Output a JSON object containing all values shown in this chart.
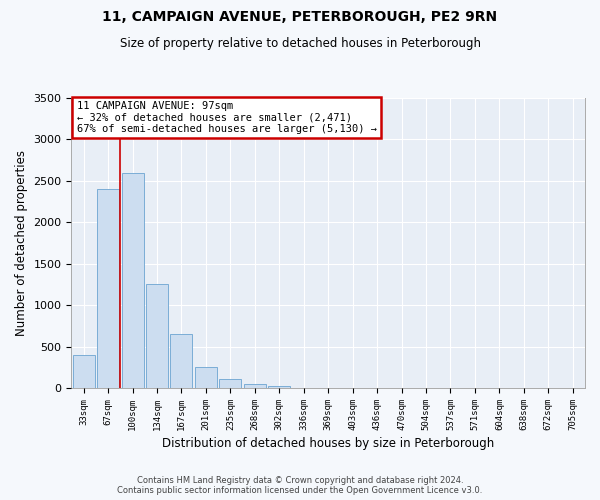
{
  "title": "11, CAMPAIGN AVENUE, PETERBOROUGH, PE2 9RN",
  "subtitle": "Size of property relative to detached houses in Peterborough",
  "xlabel": "Distribution of detached houses by size in Peterborough",
  "ylabel": "Number of detached properties",
  "bar_labels": [
    "33sqm",
    "67sqm",
    "100sqm",
    "134sqm",
    "167sqm",
    "201sqm",
    "235sqm",
    "268sqm",
    "302sqm",
    "336sqm",
    "369sqm",
    "403sqm",
    "436sqm",
    "470sqm",
    "504sqm",
    "537sqm",
    "571sqm",
    "604sqm",
    "638sqm",
    "672sqm",
    "705sqm"
  ],
  "bar_values": [
    400,
    2400,
    2600,
    1250,
    650,
    260,
    110,
    55,
    30,
    0,
    0,
    0,
    0,
    0,
    0,
    0,
    0,
    0,
    0,
    0,
    0
  ],
  "bar_color": "#ccddf0",
  "bar_edge_color": "#7badd6",
  "vline_color": "#cc0000",
  "vline_x": 1.5,
  "ylim": [
    0,
    3500
  ],
  "yticks": [
    0,
    500,
    1000,
    1500,
    2000,
    2500,
    3000,
    3500
  ],
  "annotation_title": "11 CAMPAIGN AVENUE: 97sqm",
  "annotation_line1": "← 32% of detached houses are smaller (2,471)",
  "annotation_line2": "67% of semi-detached houses are larger (5,130) →",
  "annotation_box_color": "#ffffff",
  "annotation_box_edge": "#cc0000",
  "footer_line1": "Contains HM Land Registry data © Crown copyright and database right 2024.",
  "footer_line2": "Contains public sector information licensed under the Open Government Licence v3.0.",
  "fig_bg_color": "#f5f8fc",
  "plot_bg_color": "#e8eef6",
  "grid_color": "#ffffff",
  "title_fontsize": 10,
  "subtitle_fontsize": 8.5
}
